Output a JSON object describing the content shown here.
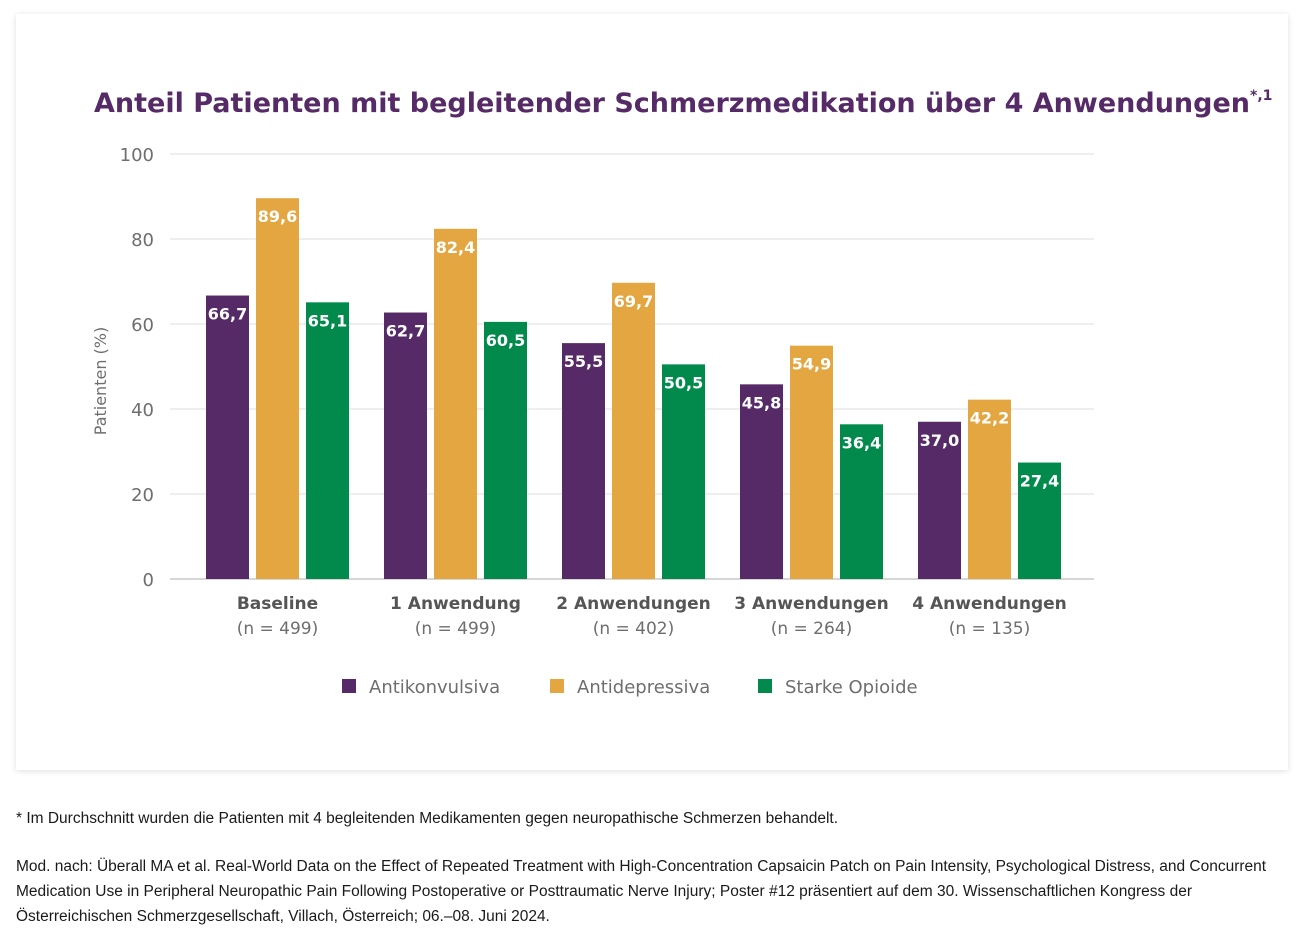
{
  "chart_data": {
    "type": "bar",
    "title": "Anteil Patienten mit begleitender Schmerzmedikation über 4 Anwendungen",
    "title_superscript": "*,1",
    "ylabel": "Patienten (%)",
    "xlabel": "",
    "ylim": [
      0,
      100
    ],
    "yticks": [
      0,
      20,
      40,
      60,
      80,
      100
    ],
    "grid": true,
    "legend_position": "bottom",
    "categories": [
      "Baseline",
      "1 Anwendung",
      "2 Anwendungen",
      "3 Anwendungen",
      "4 Anwendungen"
    ],
    "category_n": [
      "(n = 499)",
      "(n = 499)",
      "(n = 402)",
      "(n = 264)",
      "(n = 135)"
    ],
    "series": [
      {
        "name": "Antikonvulsiva",
        "color": "#552a66",
        "values": [
          66.7,
          62.7,
          55.5,
          45.8,
          37.0
        ],
        "labels": [
          "66,7",
          "62,7",
          "55,5",
          "45,8",
          "37,0"
        ]
      },
      {
        "name": "Antidepressiva",
        "color": "#e3a640",
        "values": [
          89.6,
          82.4,
          69.7,
          54.9,
          42.2
        ],
        "labels": [
          "89,6",
          "82,4",
          "69,7",
          "54,9",
          "42,2"
        ]
      },
      {
        "name": "Starke Opioide",
        "color": "#028a4c",
        "values": [
          65.1,
          60.5,
          50.5,
          36.4,
          27.4
        ],
        "labels": [
          "65,1",
          "60,5",
          "50,5",
          "36,4",
          "27,4"
        ]
      }
    ],
    "title_color": "#552a66"
  },
  "footnote": "* Im Durchschnitt wurden die Patienten mit 4 begleitenden Medikamenten gegen neuropathische Schmerzen behandelt.",
  "source": "Mod. nach: Überall MA et al. Real-World Data on the Effect of Repeated Treatment with High-Concentration Capsaicin Patch on Pain Intensity, Psychological Distress, and Concurrent Medication Use in Peripheral Neuropathic Pain Following Postoperative or Posttraumatic Nerve Injury; Poster #12 präsentiert auf dem 30. Wissenschaftlichen Kongress der Österreichischen Schmerzgesellschaft, Villach, Österreich; 06.–08. Juni 2024."
}
